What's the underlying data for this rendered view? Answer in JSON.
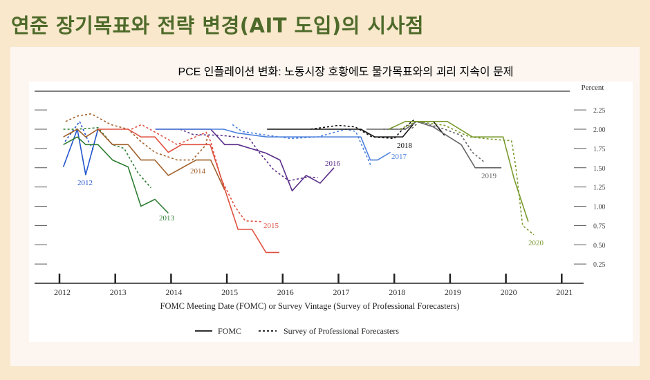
{
  "slide": {
    "title": "연준 장기목표와 전략 변경(AIT 도입)의 시사점",
    "subtitle": "PCE 인플레이션 변화: 노동시장 호황에도 물가목표와의 괴리 지속이 문제"
  },
  "colors": {
    "background": "#f9e8cc",
    "title": "#4e6a2a",
    "panel": "#fdf6f0"
  },
  "chart_data": {
    "type": "line",
    "xlabel": "FOMC Meeting Date (FOMC) or Survey Vintage (Survey of Professional Forecasters)",
    "ylabel": "Percent",
    "xlim": [
      2011.95,
      2021.1
    ],
    "ylim": [
      0,
      2.4
    ],
    "xticks": [
      "2012",
      "2013",
      "2014",
      "2015",
      "2016",
      "2017",
      "2018",
      "2019",
      "2020",
      "2021"
    ],
    "yticks": [
      "2.25",
      "2.00",
      "1.75",
      "1.50",
      "1.25",
      "1.00",
      "0.75",
      "0.50",
      "0.25"
    ],
    "grid": false,
    "legend": {
      "position": "bottom",
      "entries": [
        {
          "label": "FOMC",
          "style": "solid"
        },
        {
          "label": "Survey of Professional Forecasters",
          "style": "dashed"
        }
      ]
    },
    "series": [
      {
        "name": "2012",
        "source": "FOMC",
        "color": "#2255cc",
        "points": [
          [
            2012.07,
            1.51
          ],
          [
            2012.32,
            2.0
          ],
          [
            2012.47,
            1.41
          ],
          [
            2012.69,
            2.0
          ]
        ]
      },
      {
        "name": "2012",
        "source": "SPF",
        "color": "#2255cc",
        "points": [
          [
            2012.1,
            1.84
          ],
          [
            2012.36,
            2.1
          ],
          [
            2012.52,
            1.84
          ],
          [
            2012.62,
            1.72
          ]
        ]
      },
      {
        "name": "2013",
        "source": "FOMC",
        "color": "#2e7d32",
        "points": [
          [
            2012.07,
            1.8
          ],
          [
            2012.32,
            1.9
          ],
          [
            2012.47,
            1.8
          ],
          [
            2012.69,
            1.8
          ],
          [
            2012.95,
            1.6
          ],
          [
            2013.23,
            1.51
          ],
          [
            2013.46,
            1.0
          ],
          [
            2013.71,
            1.09
          ],
          [
            2013.95,
            0.91
          ]
        ]
      },
      {
        "name": "2013",
        "source": "SPF",
        "color": "#2e7d32",
        "points": [
          [
            2012.07,
            2.0
          ],
          [
            2012.32,
            2.0
          ],
          [
            2012.69,
            2.02
          ],
          [
            2012.95,
            1.8
          ],
          [
            2013.16,
            1.75
          ],
          [
            2013.41,
            1.43
          ],
          [
            2013.64,
            1.24
          ]
        ]
      },
      {
        "name": "2014",
        "source": "FOMC",
        "color": "#a0602a",
        "points": [
          [
            2012.07,
            1.9
          ],
          [
            2012.32,
            2.0
          ],
          [
            2012.47,
            1.9
          ],
          [
            2012.69,
            2.0
          ],
          [
            2012.95,
            1.8
          ],
          [
            2013.23,
            1.8
          ],
          [
            2013.46,
            1.6
          ],
          [
            2013.71,
            1.6
          ],
          [
            2013.95,
            1.4
          ],
          [
            2014.45,
            1.6
          ],
          [
            2014.71,
            1.6
          ],
          [
            2014.96,
            1.21
          ]
        ]
      },
      {
        "name": "2014",
        "source": "SPF",
        "color": "#a0602a",
        "points": [
          [
            2012.11,
            2.1
          ],
          [
            2012.32,
            2.17
          ],
          [
            2012.57,
            2.2
          ],
          [
            2012.92,
            2.06
          ],
          [
            2013.23,
            2.0
          ],
          [
            2013.46,
            1.84
          ],
          [
            2013.71,
            1.7
          ],
          [
            2014.11,
            1.6
          ],
          [
            2014.38,
            1.6
          ],
          [
            2014.63,
            1.8
          ],
          [
            2014.65,
            1.92
          ]
        ]
      },
      {
        "name": "2015",
        "source": "FOMC",
        "color": "#e05040",
        "points": [
          [
            2012.69,
            2.0
          ],
          [
            2013.23,
            2.0
          ],
          [
            2013.46,
            1.9
          ],
          [
            2013.71,
            1.9
          ],
          [
            2013.95,
            1.7
          ],
          [
            2014.19,
            1.8
          ],
          [
            2014.7,
            1.8
          ],
          [
            2015.2,
            0.7
          ],
          [
            2015.45,
            0.7
          ],
          [
            2015.7,
            0.4
          ],
          [
            2015.94,
            0.4
          ]
        ]
      },
      {
        "name": "2015",
        "source": "SPF",
        "color": "#e05040",
        "points": [
          [
            2013.29,
            2.0
          ],
          [
            2013.47,
            2.06
          ],
          [
            2014.11,
            1.8
          ],
          [
            2014.63,
            1.96
          ],
          [
            2014.71,
            1.84
          ],
          [
            2014.9,
            1.35
          ],
          [
            2015.15,
            0.99
          ],
          [
            2015.33,
            0.81
          ],
          [
            2015.62,
            0.8
          ]
        ]
      },
      {
        "name": "2016",
        "source": "FOMC",
        "color": "#5a2d8a",
        "points": [
          [
            2013.72,
            2.0
          ],
          [
            2014.71,
            2.0
          ],
          [
            2014.96,
            1.8
          ],
          [
            2015.2,
            1.8
          ],
          [
            2015.7,
            1.69
          ],
          [
            2015.95,
            1.6
          ],
          [
            2016.17,
            1.2
          ],
          [
            2016.42,
            1.4
          ],
          [
            2016.67,
            1.3
          ],
          [
            2016.92,
            1.5
          ]
        ]
      },
      {
        "name": "2016",
        "source": "SPF",
        "color": "#5a2d8a",
        "points": [
          [
            2014.16,
            2.0
          ],
          [
            2014.4,
            1.93
          ],
          [
            2014.9,
            1.92
          ],
          [
            2015.4,
            1.88
          ],
          [
            2015.58,
            1.7
          ],
          [
            2015.83,
            1.48
          ],
          [
            2016.11,
            1.33
          ],
          [
            2016.45,
            1.38
          ],
          [
            2016.63,
            1.37
          ]
        ]
      },
      {
        "name": "2017",
        "source": "FOMC",
        "color": "#4a7fdc",
        "points": [
          [
            2013.72,
            2.0
          ],
          [
            2014.94,
            2.0
          ],
          [
            2015.19,
            1.95
          ],
          [
            2015.72,
            1.9
          ],
          [
            2017.4,
            1.9
          ],
          [
            2017.57,
            1.6
          ],
          [
            2017.7,
            1.6
          ],
          [
            2017.93,
            1.7
          ]
        ]
      },
      {
        "name": "2017",
        "source": "SPF",
        "color": "#4a7fdc",
        "points": [
          [
            2015.1,
            2.06
          ],
          [
            2015.27,
            1.97
          ],
          [
            2015.64,
            1.93
          ],
          [
            2016.14,
            1.88
          ],
          [
            2016.63,
            1.9
          ],
          [
            2017.13,
            2.0
          ],
          [
            2017.31,
            1.97
          ],
          [
            2017.59,
            1.51
          ]
        ]
      },
      {
        "name": "2018",
        "source": "FOMC",
        "color": "#111111",
        "points": [
          [
            2015.72,
            2.0
          ],
          [
            2017.4,
            2.0
          ],
          [
            2017.65,
            1.9
          ],
          [
            2018.15,
            1.9
          ],
          [
            2018.38,
            2.1
          ],
          [
            2018.7,
            2.1
          ],
          [
            2018.9,
            1.92
          ]
        ]
      },
      {
        "name": "2018",
        "source": "SPF",
        "color": "#111111",
        "points": [
          [
            2016.5,
            2.0
          ],
          [
            2017.0,
            2.05
          ],
          [
            2017.3,
            2.03
          ],
          [
            2017.6,
            1.9
          ],
          [
            2018.0,
            1.88
          ],
          [
            2018.15,
            2.0
          ],
          [
            2018.35,
            2.12
          ]
        ]
      },
      {
        "name": "2019",
        "source": "FOMC",
        "color": "#666666",
        "points": [
          [
            2017.5,
            2.0
          ],
          [
            2018.2,
            2.0
          ],
          [
            2018.4,
            2.1
          ],
          [
            2018.7,
            2.03
          ],
          [
            2018.98,
            1.9
          ],
          [
            2019.2,
            1.8
          ],
          [
            2019.45,
            1.5
          ],
          [
            2019.92,
            1.5
          ]
        ]
      },
      {
        "name": "2019",
        "source": "SPF",
        "color": "#666666",
        "points": [
          [
            2017.8,
            2.0
          ],
          [
            2018.3,
            2.0
          ],
          [
            2018.45,
            2.1
          ],
          [
            2018.9,
            2.0
          ],
          [
            2019.2,
            1.92
          ],
          [
            2019.4,
            1.7
          ],
          [
            2019.6,
            1.58
          ]
        ]
      },
      {
        "name": "2020",
        "source": "FOMC",
        "color": "#7a9a2e",
        "points": [
          [
            2017.9,
            2.0
          ],
          [
            2018.2,
            2.1
          ],
          [
            2018.95,
            2.1
          ],
          [
            2019.4,
            1.9
          ],
          [
            2019.95,
            1.9
          ],
          [
            2020.15,
            1.35
          ],
          [
            2020.4,
            0.8
          ]
        ]
      },
      {
        "name": "2020",
        "source": "SPF",
        "color": "#7a9a2e",
        "points": [
          [
            2018.1,
            2.0
          ],
          [
            2018.4,
            2.1
          ],
          [
            2018.9,
            2.05
          ],
          [
            2019.35,
            1.9
          ],
          [
            2019.75,
            1.87
          ],
          [
            2020.1,
            1.85
          ],
          [
            2020.18,
            1.5
          ],
          [
            2020.3,
            0.75
          ],
          [
            2020.5,
            0.63
          ]
        ]
      }
    ]
  }
}
